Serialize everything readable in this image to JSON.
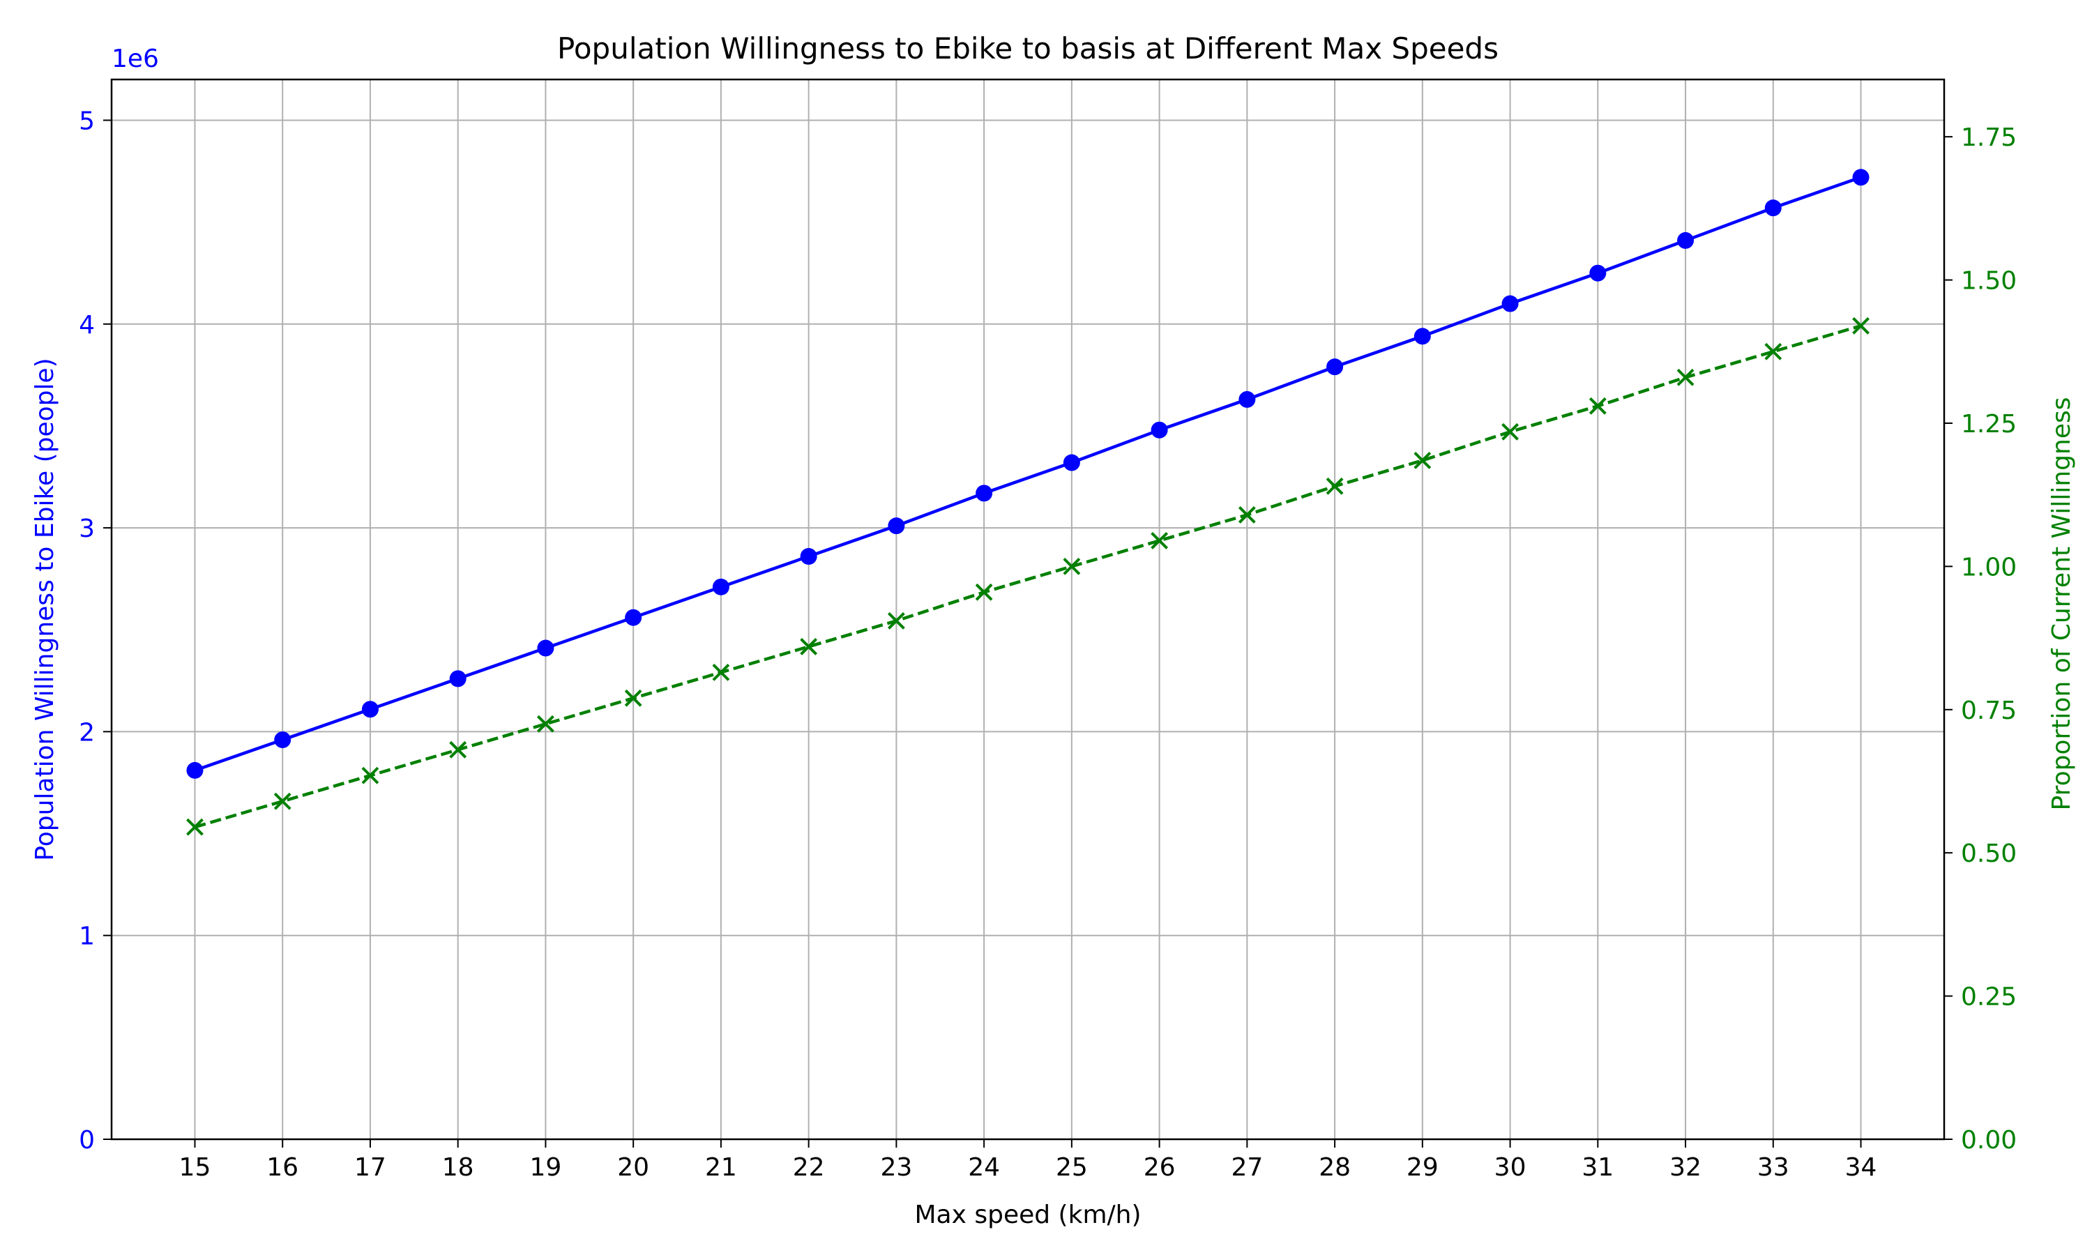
{
  "chart_data": {
    "type": "line",
    "title": "Population Willingness to Ebike to basis at Different Max Speeds",
    "xlabel": "Max speed (km/h)",
    "ylabel_left": "Population Willingness to Ebike (people)",
    "ylabel_right": "Proportion of Current Willingness",
    "left_offset_label": "1e6",
    "x": [
      15,
      16,
      17,
      18,
      19,
      20,
      21,
      22,
      23,
      24,
      25,
      26,
      27,
      28,
      29,
      30,
      31,
      32,
      33,
      34
    ],
    "xlim": [
      14.05,
      34.95
    ],
    "ylim_left": [
      0,
      5.2
    ],
    "ylim_right": [
      0,
      1.85
    ],
    "yticks_left": [
      0,
      1,
      2,
      3,
      4,
      5
    ],
    "yticks_right": [
      "0.00",
      "0.25",
      "0.50",
      "0.75",
      "1.00",
      "1.25",
      "1.50",
      "1.75"
    ],
    "grid": true,
    "colors": {
      "left_axis": "#0000ff",
      "right_axis": "#008000"
    },
    "series": [
      {
        "axis": "left",
        "color": "#0000ff",
        "line_style": "solid",
        "marker": "circle",
        "values": [
          1.81,
          1.96,
          2.11,
          2.26,
          2.41,
          2.56,
          2.71,
          2.86,
          3.01,
          3.17,
          3.32,
          3.48,
          3.63,
          3.79,
          3.94,
          4.1,
          4.25,
          4.41,
          4.57,
          4.72
        ]
      },
      {
        "axis": "right",
        "color": "#008000",
        "line_style": "dashed",
        "marker": "x",
        "values": [
          0.545,
          0.59,
          0.635,
          0.68,
          0.725,
          0.77,
          0.815,
          0.86,
          0.905,
          0.955,
          1.0,
          1.045,
          1.09,
          1.14,
          1.185,
          1.235,
          1.28,
          1.33,
          1.375,
          1.42
        ]
      }
    ]
  }
}
